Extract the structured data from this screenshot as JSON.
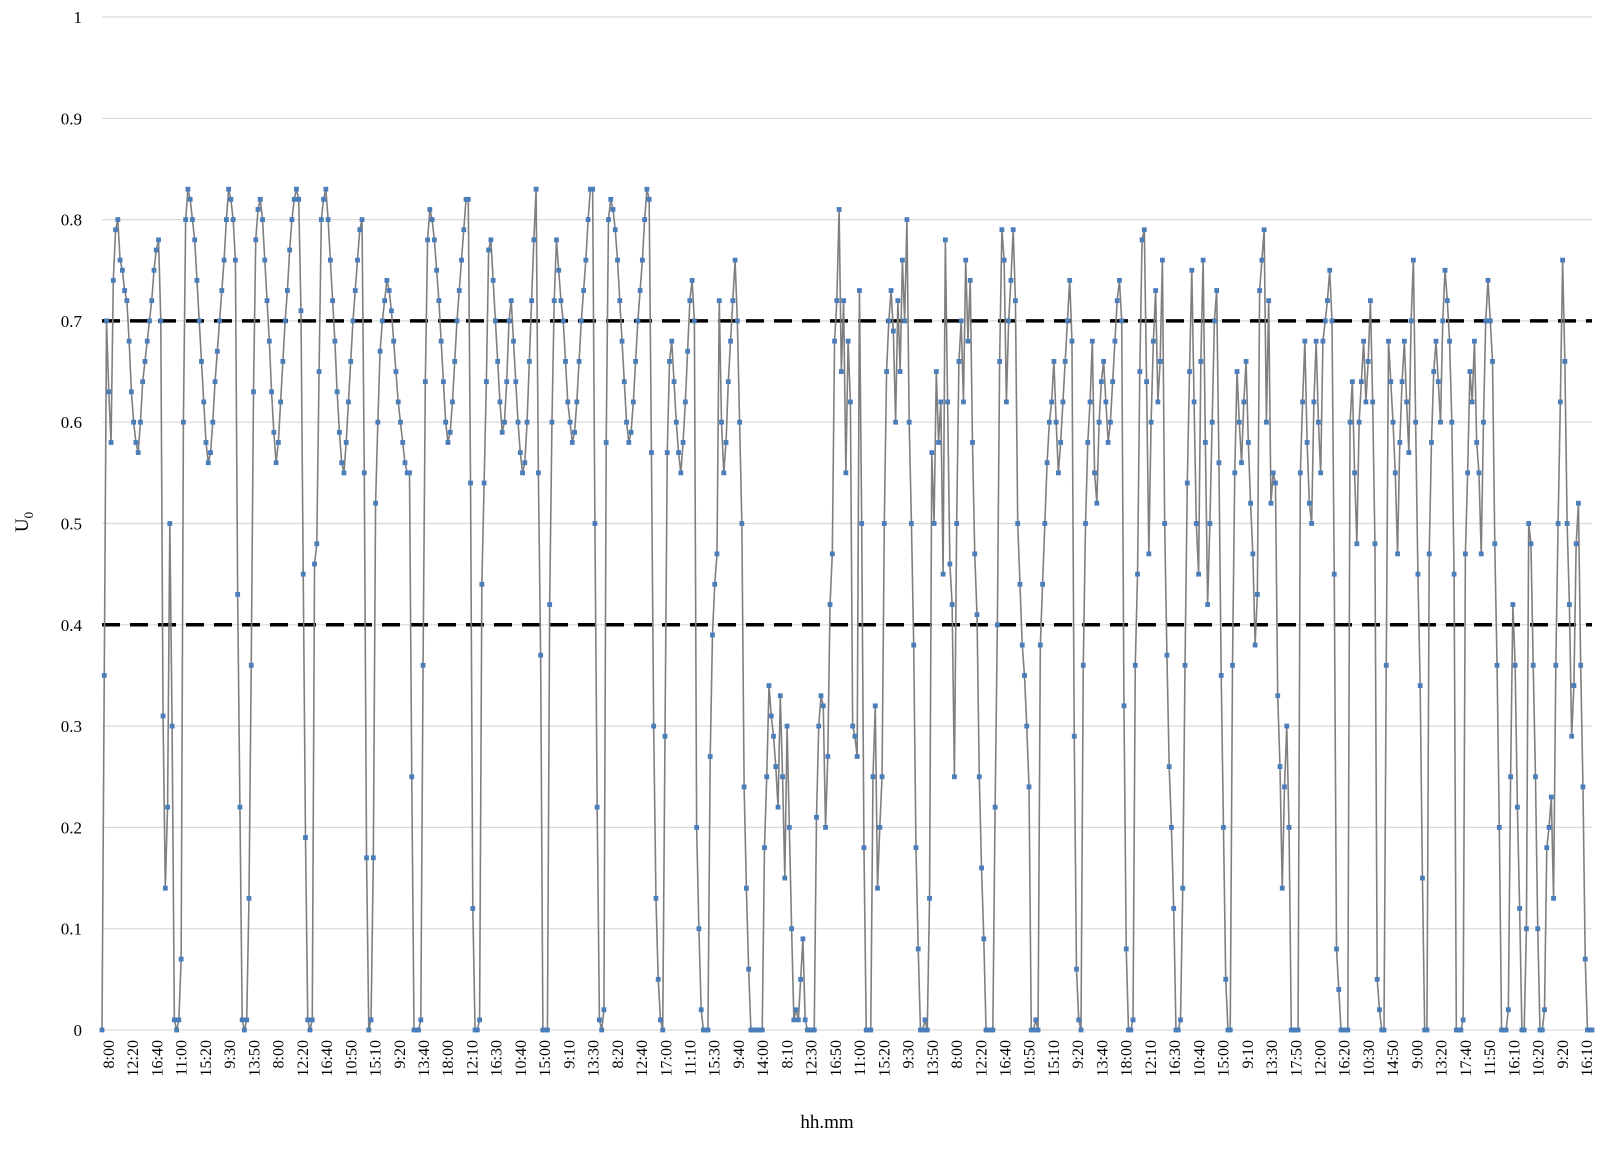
{
  "chart_data": {
    "type": "line",
    "title": "",
    "xlabel": "hh.mm",
    "ylabel": "U0",
    "ylim": [
      0,
      1
    ],
    "yticks": [
      0,
      0.1,
      0.2,
      0.3,
      0.4,
      0.5,
      0.6,
      0.7,
      0.8,
      0.9,
      1
    ],
    "grid": "horizontal",
    "legend": "none",
    "series_color": "#7f7f7f",
    "marker_color": "#4a7ebb",
    "reference_lines": [
      {
        "y": 0.7,
        "style": "dashed",
        "color": "#000000"
      },
      {
        "y": 0.4,
        "style": "dashed",
        "color": "#000000"
      }
    ],
    "x_tick_labels": [
      "8:00",
      "12:20",
      "16:40",
      "11:00",
      "15:20",
      "9:30",
      "13:50",
      "8:00",
      "12:20",
      "16:40",
      "10:50",
      "15:10",
      "9:20",
      "13:40",
      "18:00",
      "12:10",
      "16:30",
      "10:40",
      "15:00",
      "9:10",
      "13:30",
      "8:20",
      "12:40",
      "17:00",
      "11:10",
      "15:30",
      "9:40",
      "14:00",
      "8:10",
      "12:30",
      "16:50",
      "11:00",
      "15:20",
      "9:30",
      "13:50",
      "8:00",
      "12:20",
      "16:40",
      "10:50",
      "15:10",
      "9:20",
      "13:40",
      "18:00",
      "12:10",
      "16:30",
      "10:40",
      "15:00",
      "9:10",
      "13:30",
      "17:50",
      "12:00",
      "16:20",
      "10:30",
      "14:50",
      "9:00",
      "13:20",
      "17:40",
      "11:50",
      "16:10",
      "10:20",
      "9:20",
      "16:10"
    ],
    "series": [
      {
        "name": "",
        "values": [
          0,
          0.35,
          0.7,
          0.63,
          0.58,
          0.74,
          0.79,
          0.8,
          0.76,
          0.75,
          0.73,
          0.72,
          0.68,
          0.63,
          0.6,
          0.58,
          0.57,
          0.6,
          0.64,
          0.66,
          0.68,
          0.7,
          0.72,
          0.75,
          0.77,
          0.78,
          0.7,
          0.31,
          0.14,
          0.22,
          0.5,
          0.3,
          0.01,
          0.0,
          0.01,
          0.07,
          0.6,
          0.8,
          0.83,
          0.82,
          0.8,
          0.78,
          0.74,
          0.7,
          0.66,
          0.62,
          0.58,
          0.56,
          0.57,
          0.6,
          0.64,
          0.67,
          0.7,
          0.73,
          0.76,
          0.8,
          0.83,
          0.82,
          0.8,
          0.76,
          0.43,
          0.22,
          0.01,
          0.0,
          0.01,
          0.13,
          0.36,
          0.63,
          0.78,
          0.81,
          0.82,
          0.8,
          0.76,
          0.72,
          0.68,
          0.63,
          0.59,
          0.56,
          0.58,
          0.62,
          0.66,
          0.7,
          0.73,
          0.77,
          0.8,
          0.82,
          0.83,
          0.82,
          0.71,
          0.45,
          0.19,
          0.01,
          0.0,
          0.01,
          0.46,
          0.48,
          0.65,
          0.8,
          0.82,
          0.83,
          0.8,
          0.76,
          0.72,
          0.68,
          0.63,
          0.59,
          0.56,
          0.55,
          0.58,
          0.62,
          0.66,
          0.7,
          0.73,
          0.76,
          0.79,
          0.8,
          0.55,
          0.17,
          0.0,
          0.01,
          0.17,
          0.52,
          0.6,
          0.67,
          0.7,
          0.72,
          0.74,
          0.73,
          0.71,
          0.68,
          0.65,
          0.62,
          0.6,
          0.58,
          0.56,
          0.55,
          0.55,
          0.25,
          0.0,
          0.0,
          0.0,
          0.01,
          0.36,
          0.64,
          0.78,
          0.81,
          0.8,
          0.78,
          0.75,
          0.72,
          0.68,
          0.64,
          0.6,
          0.58,
          0.59,
          0.62,
          0.66,
          0.7,
          0.73,
          0.76,
          0.79,
          0.82,
          0.82,
          0.54,
          0.12,
          0.0,
          0.0,
          0.01,
          0.44,
          0.54,
          0.64,
          0.77,
          0.78,
          0.74,
          0.7,
          0.66,
          0.62,
          0.59,
          0.6,
          0.64,
          0.7,
          0.72,
          0.68,
          0.64,
          0.6,
          0.57,
          0.55,
          0.56,
          0.6,
          0.66,
          0.72,
          0.78,
          0.83,
          0.55,
          0.37,
          0.0,
          0.0,
          0.0,
          0.42,
          0.6,
          0.72,
          0.78,
          0.75,
          0.72,
          0.7,
          0.66,
          0.62,
          0.6,
          0.58,
          0.59,
          0.62,
          0.66,
          0.7,
          0.73,
          0.76,
          0.8,
          0.83,
          0.83,
          0.5,
          0.22,
          0.01,
          0.0,
          0.02,
          0.58,
          0.8,
          0.82,
          0.81,
          0.79,
          0.76,
          0.72,
          0.68,
          0.64,
          0.6,
          0.58,
          0.59,
          0.62,
          0.66,
          0.7,
          0.73,
          0.76,
          0.8,
          0.83,
          0.82,
          0.57,
          0.3,
          0.13,
          0.05,
          0.01,
          0.0,
          0.29,
          0.57,
          0.66,
          0.68,
          0.64,
          0.6,
          0.57,
          0.55,
          0.58,
          0.62,
          0.67,
          0.72,
          0.74,
          0.7,
          0.2,
          0.1,
          0.02,
          0.0,
          0.0,
          0.0,
          0.27,
          0.39,
          0.44,
          0.47,
          0.72,
          0.6,
          0.55,
          0.58,
          0.64,
          0.68,
          0.72,
          0.76,
          0.7,
          0.6,
          0.5,
          0.24,
          0.14,
          0.06,
          0.0,
          0.0,
          0.0,
          0.0,
          0.0,
          0.0,
          0.18,
          0.25,
          0.34,
          0.31,
          0.29,
          0.26,
          0.22,
          0.33,
          0.25,
          0.15,
          0.3,
          0.2,
          0.1,
          0.01,
          0.02,
          0.01,
          0.05,
          0.09,
          0.01,
          0.0,
          0.0,
          0.0,
          0.0,
          0.21,
          0.3,
          0.33,
          0.32,
          0.2,
          0.27,
          0.42,
          0.47,
          0.68,
          0.72,
          0.81,
          0.65,
          0.72,
          0.55,
          0.68,
          0.62,
          0.3,
          0.29,
          0.27,
          0.73,
          0.5,
          0.18,
          0.0,
          0.0,
          0.0,
          0.25,
          0.32,
          0.14,
          0.2,
          0.25,
          0.5,
          0.65,
          0.7,
          0.73,
          0.69,
          0.6,
          0.72,
          0.65,
          0.76,
          0.7,
          0.8,
          0.6,
          0.5,
          0.38,
          0.18,
          0.08,
          0.0,
          0.0,
          0.01,
          0.0,
          0.13,
          0.57,
          0.5,
          0.65,
          0.58,
          0.62,
          0.45,
          0.78,
          0.62,
          0.46,
          0.42,
          0.25,
          0.5,
          0.66,
          0.7,
          0.62,
          0.76,
          0.68,
          0.74,
          0.58,
          0.47,
          0.41,
          0.25,
          0.16,
          0.09,
          0.0,
          0.0,
          0.0,
          0.0,
          0.22,
          0.4,
          0.66,
          0.79,
          0.76,
          0.62,
          0.7,
          0.74,
          0.79,
          0.72,
          0.5,
          0.44,
          0.38,
          0.35,
          0.3,
          0.24,
          0.0,
          0.0,
          0.01,
          0.0,
          0.38,
          0.44,
          0.5,
          0.56,
          0.6,
          0.62,
          0.66,
          0.6,
          0.55,
          0.58,
          0.62,
          0.66,
          0.7,
          0.74,
          0.68,
          0.29,
          0.06,
          0.01,
          0.0,
          0.36,
          0.5,
          0.58,
          0.62,
          0.68,
          0.55,
          0.52,
          0.6,
          0.64,
          0.66,
          0.62,
          0.58,
          0.6,
          0.64,
          0.68,
          0.72,
          0.74,
          0.7,
          0.32,
          0.08,
          0.0,
          0.0,
          0.01,
          0.36,
          0.45,
          0.65,
          0.78,
          0.79,
          0.64,
          0.47,
          0.6,
          0.68,
          0.73,
          0.62,
          0.66,
          0.76,
          0.5,
          0.37,
          0.26,
          0.2,
          0.12,
          0.0,
          0.0,
          0.01,
          0.14,
          0.36,
          0.54,
          0.65,
          0.75,
          0.62,
          0.5,
          0.45,
          0.66,
          0.76,
          0.58,
          0.42,
          0.5,
          0.6,
          0.7,
          0.73,
          0.56,
          0.35,
          0.2,
          0.05,
          0.0,
          0.0,
          0.36,
          0.55,
          0.65,
          0.6,
          0.56,
          0.62,
          0.66,
          0.58,
          0.52,
          0.47,
          0.38,
          0.43,
          0.73,
          0.76,
          0.79,
          0.6,
          0.72,
          0.52,
          0.55,
          0.54,
          0.33,
          0.26,
          0.14,
          0.24,
          0.3,
          0.2,
          0.0,
          0.0,
          0.0,
          0.0,
          0.55,
          0.62,
          0.68,
          0.58,
          0.52,
          0.5,
          0.62,
          0.68,
          0.6,
          0.55,
          0.68,
          0.7,
          0.72,
          0.75,
          0.7,
          0.45,
          0.08,
          0.04,
          0.0,
          0.0,
          0.0,
          0.0,
          0.6,
          0.64,
          0.55,
          0.48,
          0.6,
          0.64,
          0.68,
          0.62,
          0.66,
          0.72,
          0.62,
          0.48,
          0.05,
          0.02,
          0.0,
          0.0,
          0.36,
          0.68,
          0.64,
          0.6,
          0.55,
          0.47,
          0.58,
          0.64,
          0.68,
          0.62,
          0.57,
          0.7,
          0.76,
          0.6,
          0.45,
          0.34,
          0.15,
          0.0,
          0.0,
          0.47,
          0.58,
          0.65,
          0.68,
          0.64,
          0.6,
          0.7,
          0.75,
          0.72,
          0.68,
          0.6,
          0.45,
          0.0,
          0.0,
          0.0,
          0.01,
          0.47,
          0.55,
          0.65,
          0.62,
          0.68,
          0.58,
          0.55,
          0.47,
          0.6,
          0.7,
          0.74,
          0.7,
          0.66,
          0.48,
          0.36,
          0.2,
          0.0,
          0.0,
          0.0,
          0.02,
          0.25,
          0.42,
          0.36,
          0.22,
          0.12,
          0.0,
          0.0,
          0.1,
          0.5,
          0.48,
          0.36,
          0.25,
          0.1,
          0.0,
          0.0,
          0.02,
          0.18,
          0.2,
          0.23,
          0.13,
          0.36,
          0.5,
          0.62,
          0.76,
          0.66,
          0.5,
          0.42,
          0.29,
          0.34,
          0.48,
          0.52,
          0.36,
          0.24,
          0.07,
          0.0,
          0.0,
          0.0
        ]
      }
    ]
  },
  "reference_line_labels": [
    "",
    ""
  ]
}
